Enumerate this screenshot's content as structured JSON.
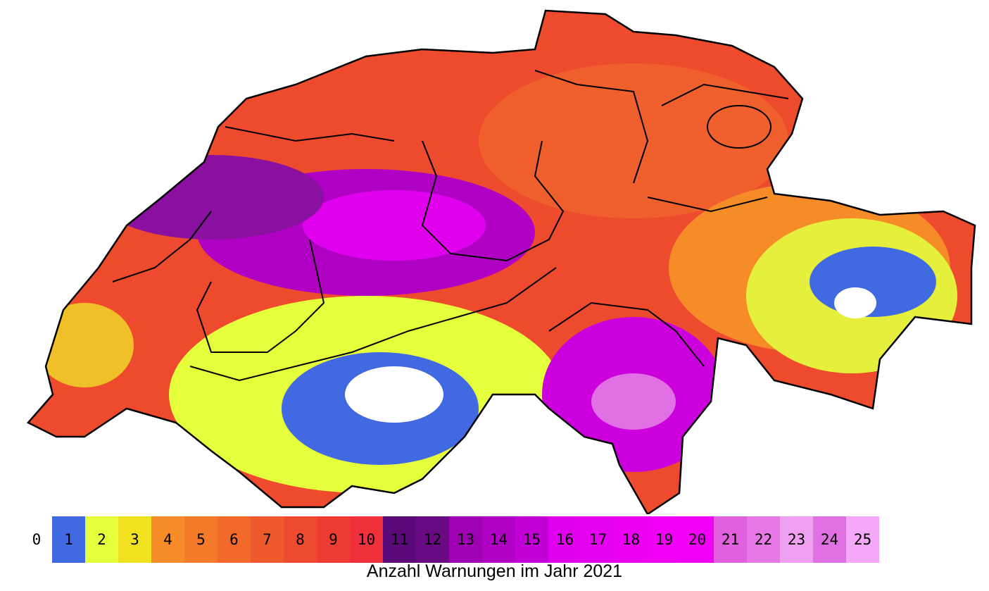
{
  "caption": "Anzahl Warnungen im Jahr 2021",
  "legend": [
    {
      "label": "0",
      "color": "#ffffff"
    },
    {
      "label": "1",
      "color": "#4169e1"
    },
    {
      "label": "2",
      "color": "#e6ff3c"
    },
    {
      "label": "3",
      "color": "#f0e21e"
    },
    {
      "label": "4",
      "color": "#f58c28"
    },
    {
      "label": "5",
      "color": "#f57a2a"
    },
    {
      "label": "6",
      "color": "#f26a2a"
    },
    {
      "label": "7",
      "color": "#ef5a2c"
    },
    {
      "label": "8",
      "color": "#ee4a30"
    },
    {
      "label": "9",
      "color": "#ee3c34"
    },
    {
      "label": "10",
      "color": "#f0303a"
    },
    {
      "label": "11",
      "color": "#5a0a78"
    },
    {
      "label": "12",
      "color": "#6a0a82"
    },
    {
      "label": "13",
      "color": "#a000b4"
    },
    {
      "label": "14",
      "color": "#b000c4"
    },
    {
      "label": "15",
      "color": "#c000d4"
    },
    {
      "label": "16",
      "color": "#e000ee"
    },
    {
      "label": "17",
      "color": "#e600f0"
    },
    {
      "label": "18",
      "color": "#ec00f2"
    },
    {
      "label": "19",
      "color": "#f000f4"
    },
    {
      "label": "20",
      "color": "#f200f6"
    },
    {
      "label": "21",
      "color": "#e060e0"
    },
    {
      "label": "22",
      "color": "#e878e8"
    },
    {
      "label": "23",
      "color": "#f0a0f0"
    },
    {
      "label": "24",
      "color": "#e070e4"
    },
    {
      "label": "25",
      "color": "#f4a8f8"
    }
  ]
}
